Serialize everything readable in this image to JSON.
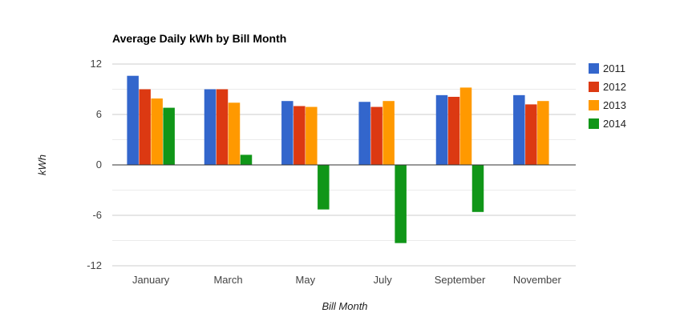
{
  "chart_data": {
    "type": "bar",
    "title": "Average Daily kWh by Bill Month",
    "xlabel": "Bill Month",
    "ylabel": "kWh",
    "ylim": [
      -12,
      12
    ],
    "yticks": [
      "12",
      "6",
      "0",
      "-6",
      "-12"
    ],
    "grid": true,
    "legend_position": "right",
    "categories": [
      "January",
      "March",
      "May",
      "July",
      "September",
      "November"
    ],
    "series": [
      {
        "name": "2011",
        "color": "#3366cc",
        "values": [
          10.6,
          9.0,
          7.6,
          7.5,
          8.3,
          8.3
        ]
      },
      {
        "name": "2012",
        "color": "#dc3912",
        "values": [
          9.0,
          9.0,
          7.0,
          6.9,
          8.1,
          7.2
        ]
      },
      {
        "name": "2013",
        "color": "#ff9900",
        "values": [
          7.9,
          7.4,
          6.9,
          7.6,
          9.2,
          7.6
        ]
      },
      {
        "name": "2014",
        "color": "#109618",
        "values": [
          6.8,
          1.2,
          -5.3,
          -9.3,
          -5.6,
          null
        ]
      }
    ]
  }
}
